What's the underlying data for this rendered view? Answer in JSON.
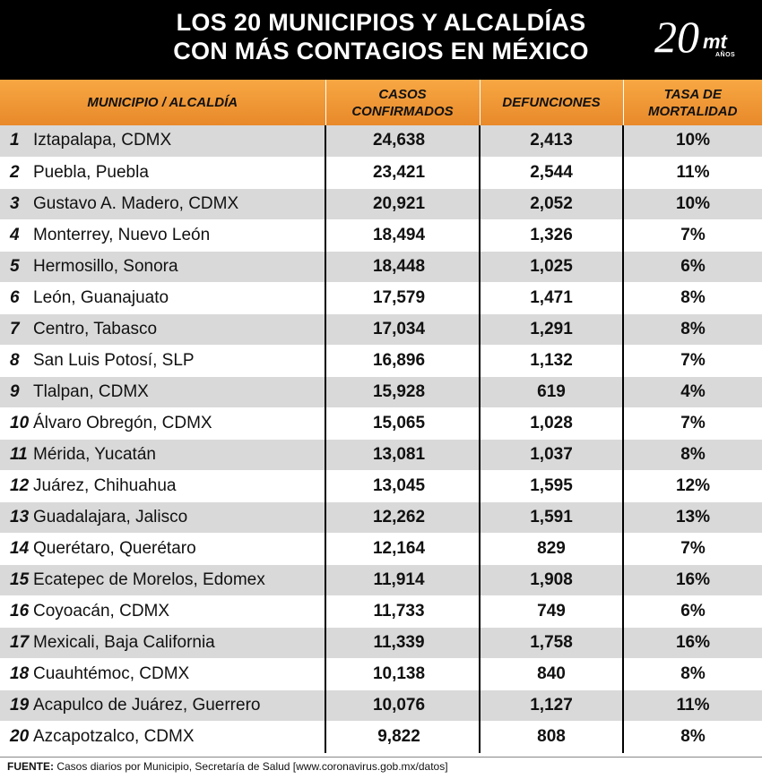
{
  "title_line1": "LOS 20 MUNICIPIOS Y ALCALDÍAS",
  "title_line2": "CON MÁS CONTAGIOS EN MÉXICO",
  "logo": {
    "number": "20",
    "brand": "mt",
    "sub": "AÑOS"
  },
  "headers": {
    "municipio": "MUNICIPIO / ALCALDÍA",
    "casos": "CASOS CONFIRMADOS",
    "defunciones": "DEFUNCIONES",
    "tasa": "TASA DE MORTALIDAD"
  },
  "colors": {
    "header_bg": "#000000",
    "column_header": "#f39c3a",
    "row_stripe": "#d9d9d9"
  },
  "chart_data": {
    "type": "table",
    "columns": [
      "MUNICIPIO / ALCALDÍA",
      "CASOS CONFIRMADOS",
      "DEFUNCIONES",
      "TASA DE MORTALIDAD"
    ],
    "rows": [
      {
        "rank": "1",
        "municipio": "Iztapalapa, CDMX",
        "casos": "24,638",
        "defunciones": "2,413",
        "tasa": "10%"
      },
      {
        "rank": "2",
        "municipio": "Puebla, Puebla",
        "casos": "23,421",
        "defunciones": "2,544",
        "tasa": "11%"
      },
      {
        "rank": "3",
        "municipio": "Gustavo A. Madero, CDMX",
        "casos": "20,921",
        "defunciones": "2,052",
        "tasa": "10%"
      },
      {
        "rank": "4",
        "municipio": "Monterrey, Nuevo León",
        "casos": "18,494",
        "defunciones": "1,326",
        "tasa": "7%"
      },
      {
        "rank": "5",
        "municipio": "Hermosillo, Sonora",
        "casos": "18,448",
        "defunciones": "1,025",
        "tasa": "6%"
      },
      {
        "rank": "6",
        "municipio": "León, Guanajuato",
        "casos": "17,579",
        "defunciones": "1,471",
        "tasa": "8%"
      },
      {
        "rank": "7",
        "municipio": "Centro, Tabasco",
        "casos": "17,034",
        "defunciones": "1,291",
        "tasa": "8%"
      },
      {
        "rank": "8",
        "municipio": "San Luis Potosí, SLP",
        "casos": "16,896",
        "defunciones": "1,132",
        "tasa": "7%"
      },
      {
        "rank": "9",
        "municipio": "Tlalpan, CDMX",
        "casos": "15,928",
        "defunciones": "619",
        "tasa": "4%"
      },
      {
        "rank": "10",
        "municipio": "Álvaro Obregón, CDMX",
        "casos": "15,065",
        "defunciones": "1,028",
        "tasa": "7%"
      },
      {
        "rank": "11",
        "municipio": "Mérida, Yucatán",
        "casos": "13,081",
        "defunciones": "1,037",
        "tasa": "8%"
      },
      {
        "rank": "12",
        "municipio": "Juárez, Chihuahua",
        "casos": "13,045",
        "defunciones": "1,595",
        "tasa": "12%"
      },
      {
        "rank": "13",
        "municipio": "Guadalajara, Jalisco",
        "casos": "12,262",
        "defunciones": "1,591",
        "tasa": "13%"
      },
      {
        "rank": "14",
        "municipio": "Querétaro, Querétaro",
        "casos": "12,164",
        "defunciones": "829",
        "tasa": "7%"
      },
      {
        "rank": "15",
        "municipio": "Ecatepec de Morelos, Edomex",
        "casos": "11,914",
        "defunciones": "1,908",
        "tasa": "16%"
      },
      {
        "rank": "16",
        "municipio": "Coyoacán, CDMX",
        "casos": "11,733",
        "defunciones": "749",
        "tasa": "6%"
      },
      {
        "rank": "17",
        "municipio": "Mexicali, Baja California",
        "casos": "11,339",
        "defunciones": "1,758",
        "tasa": "16%"
      },
      {
        "rank": "18",
        "municipio": "Cuauhtémoc, CDMX",
        "casos": "10,138",
        "defunciones": "840",
        "tasa": "8%"
      },
      {
        "rank": "19",
        "municipio": "Acapulco de Juárez, Guerrero",
        "casos": "10,076",
        "defunciones": "1,127",
        "tasa": "11%"
      },
      {
        "rank": "20",
        "municipio": "Azcapotzalco, CDMX",
        "casos": "9,822",
        "defunciones": "808",
        "tasa": "8%"
      }
    ]
  },
  "footer": {
    "label": "FUENTE:",
    "text": "Casos diarios por Municipio, Secretaría de Salud [www.coronavirus.gob.mx/datos]"
  }
}
